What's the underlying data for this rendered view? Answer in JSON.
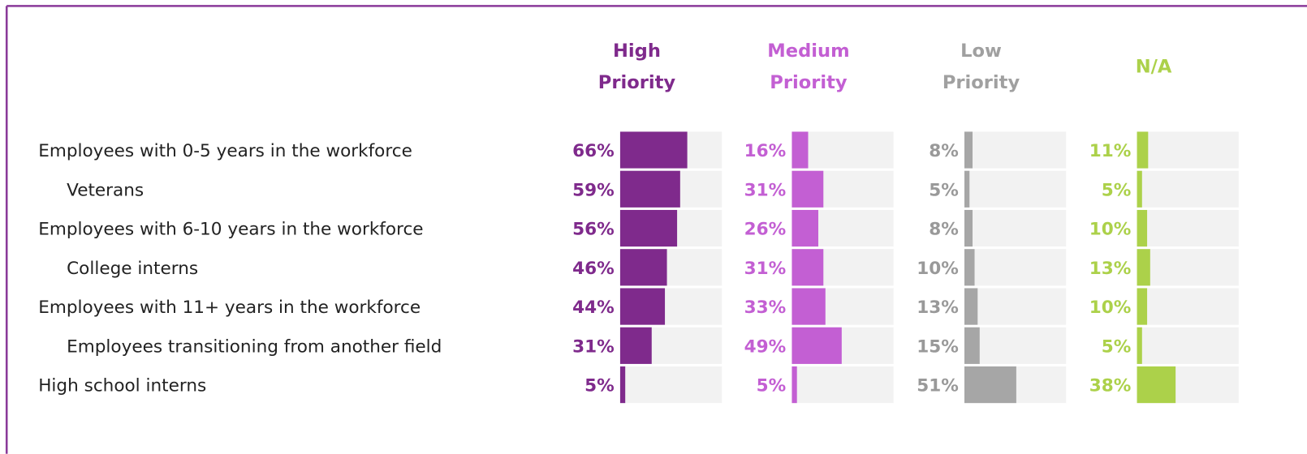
{
  "chart_data": {
    "type": "bar",
    "categories": [
      "Employees with 0-5 years in the workforce",
      "Veterans",
      "Employees with 6-10 years in the workforce",
      "College interns",
      "Employees with 11+ years in the workforce",
      "Employees transitioning from another field",
      "High school interns"
    ],
    "xlim": [
      0,
      100
    ],
    "series": [
      {
        "name": "High Priority",
        "color": "#7f2a8c",
        "values": [
          66,
          59,
          56,
          46,
          44,
          31,
          5
        ],
        "value_labels": [
          "66%",
          "59%",
          "56%",
          "46%",
          "44%",
          "31%",
          "5%"
        ]
      },
      {
        "name": "Medium Priority",
        "color": "#c35fd3",
        "values": [
          16,
          31,
          26,
          31,
          33,
          49,
          5
        ],
        "value_labels": [
          "16%",
          "31%",
          "26%",
          "31%",
          "33%",
          "49%",
          "5%"
        ]
      },
      {
        "name": "Low Priority",
        "color": "#a6a6a6",
        "values": [
          8,
          5,
          8,
          10,
          13,
          15,
          51
        ],
        "value_labels": [
          "8%",
          "5%",
          "8%",
          "10%",
          "13%",
          "15%",
          "51%"
        ]
      },
      {
        "name": "N/A",
        "color": "#acd14a",
        "values": [
          11,
          5,
          10,
          13,
          10,
          5,
          38
        ],
        "value_labels": [
          "11%",
          "5%",
          "10%",
          "13%",
          "10%",
          "5%",
          "38%"
        ]
      }
    ]
  }
}
